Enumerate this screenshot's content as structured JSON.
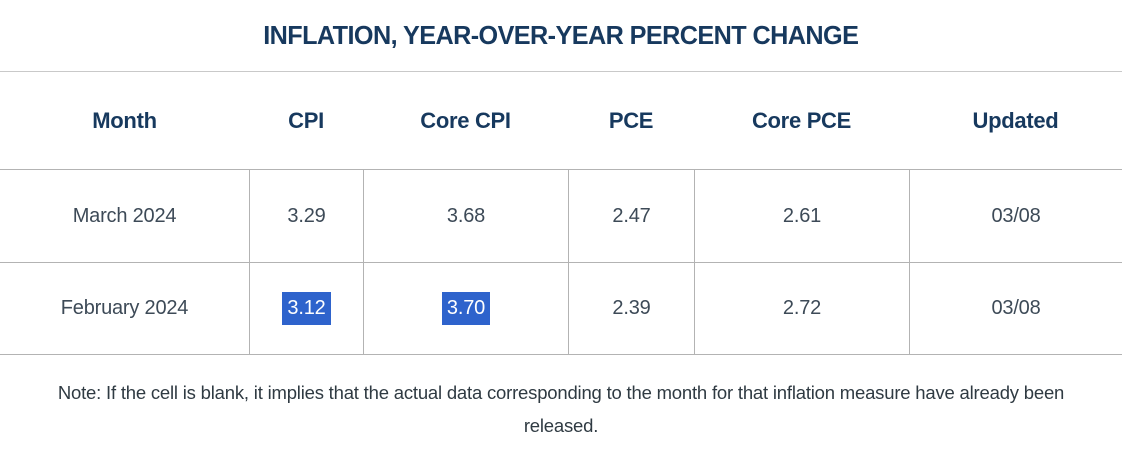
{
  "title": "INFLATION, YEAR-OVER-YEAR PERCENT CHANGE",
  "table": {
    "columns": {
      "month": "Month",
      "cpi": "CPI",
      "core_cpi": "Core CPI",
      "pce": "PCE",
      "core_pce": "Core PCE",
      "updated": "Updated"
    },
    "rows": [
      {
        "month": "March 2024",
        "cpi": "3.29",
        "core_cpi": "3.68",
        "pce": "2.47",
        "core_pce": "2.61",
        "updated": "03/08"
      },
      {
        "month": "February 2024",
        "cpi": "3.12",
        "core_cpi": "3.70",
        "pce": "2.39",
        "core_pce": "2.72",
        "updated": "03/08"
      }
    ],
    "highlights": [
      [
        1,
        1
      ],
      [
        1,
        2
      ]
    ]
  },
  "note": "Note: If the cell is blank, it implies that the actual data corresponding to the month for that inflation measure have already been released.",
  "colors": {
    "heading_navy": "#17395e",
    "body_text": "#3d4a57",
    "grid_line": "#b3b3b3",
    "selection_highlight": "#2e63cc",
    "selection_text": "#ffffff",
    "background": "#ffffff"
  },
  "chart_data": {
    "type": "table",
    "title": "INFLATION, YEAR-OVER-YEAR PERCENT CHANGE",
    "columns": [
      "Month",
      "CPI",
      "Core CPI",
      "PCE",
      "Core PCE",
      "Updated"
    ],
    "rows": [
      [
        "March 2024",
        3.29,
        3.68,
        2.47,
        2.61,
        "03/08"
      ],
      [
        "February 2024",
        3.12,
        3.7,
        2.39,
        2.72,
        "03/08"
      ]
    ],
    "highlighted_cells": [
      {
        "row": "February 2024",
        "column": "CPI",
        "value": 3.12
      },
      {
        "row": "February 2024",
        "column": "Core CPI",
        "value": 3.7
      }
    ],
    "note": "Note: If the cell is blank, it implies that the actual data corresponding to the month for that inflation measure have already been released."
  }
}
